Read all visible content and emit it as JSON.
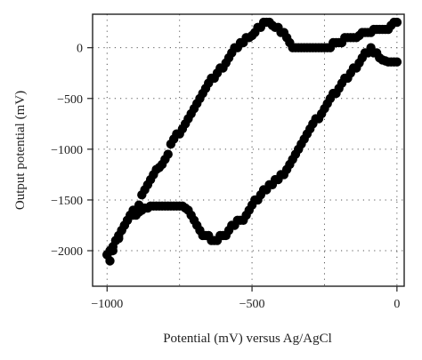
{
  "chart_data": {
    "type": "scatter",
    "xlabel": "Potential (mV) versus Ag/AgCl",
    "ylabel": "Output potential (mV)",
    "xlim": [
      -1050,
      25
    ],
    "ylim": [
      -2350,
      330
    ],
    "x_ticks": [
      -1000,
      -500,
      0
    ],
    "y_ticks": [
      -2000,
      -1500,
      -1000,
      -500,
      0
    ],
    "x_tick_labels": [
      "−1000",
      "−500",
      "0"
    ],
    "y_tick_labels": [
      "−2000",
      "−1500",
      "−1000",
      "−500",
      "0"
    ],
    "x_grid": [
      -1000,
      -750,
      -500,
      -250,
      0
    ],
    "y_grid": [
      -2000,
      -1500,
      -1000,
      -500,
      0
    ],
    "grid": "dotted",
    "marker_color": "#000000",
    "series": [
      {
        "x": [
          -1000,
          -990,
          -980,
          -970,
          -960,
          -950,
          -940,
          -930,
          -920,
          -910,
          -900,
          -890,
          -880,
          -870,
          -860,
          -850,
          -840,
          -830,
          -820,
          -810,
          -800,
          -790,
          -780,
          -770,
          -760,
          -750,
          -740,
          -730,
          -720,
          -710,
          -700,
          -690,
          -680,
          -670,
          -660,
          -650,
          -640,
          -630,
          -620,
          -610,
          -600,
          -590,
          -580,
          -570,
          -560,
          -550,
          -540,
          -530,
          -520,
          -510,
          -500,
          -490,
          -480,
          -470,
          -460,
          -450,
          -440,
          -430,
          -420,
          -410,
          -400,
          -390,
          -380,
          -370,
          -360,
          -350,
          -340,
          -330,
          -320,
          -310,
          -300,
          -290,
          -280,
          -270,
          -260,
          -250,
          -240,
          -230,
          -220,
          -210,
          -200,
          -190,
          -180,
          -170,
          -160,
          -150,
          -140,
          -130,
          -120,
          -110,
          -100,
          -90,
          -80,
          -70,
          -60,
          -50,
          -40,
          -30,
          -20,
          -10,
          0
        ],
        "y": [
          -2040,
          -2100,
          -2000,
          -1900,
          -1880,
          -1800,
          -1750,
          -1700,
          -1650,
          -1600,
          -1600,
          -1550,
          -1450,
          -1400,
          -1350,
          -1300,
          -1250,
          -1200,
          -1180,
          -1150,
          -1100,
          -1050,
          -950,
          -900,
          -850,
          -850,
          -800,
          -750,
          -700,
          -650,
          -600,
          -550,
          -500,
          -450,
          -400,
          -350,
          -300,
          -300,
          -250,
          -200,
          -200,
          -150,
          -100,
          -50,
          0,
          0,
          50,
          50,
          100,
          100,
          120,
          150,
          200,
          200,
          250,
          250,
          250,
          220,
          200,
          200,
          150,
          150,
          100,
          50,
          0,
          0,
          0,
          0,
          0,
          0,
          0,
          0,
          0,
          0,
          0,
          0,
          0,
          0,
          50,
          50,
          50,
          50,
          100,
          100,
          100,
          100,
          100,
          120,
          150,
          150,
          150,
          150,
          180,
          180,
          180,
          180,
          180,
          180,
          220,
          250,
          250
        ]
      },
      {
        "x": [
          -1000,
          -990,
          -980,
          -970,
          -960,
          -950,
          -940,
          -930,
          -920,
          -910,
          -900,
          -890,
          -880,
          -870,
          -860,
          -850,
          -840,
          -830,
          -820,
          -810,
          -800,
          -790,
          -780,
          -770,
          -760,
          -750,
          -740,
          -730,
          -720,
          -710,
          -700,
          -690,
          -680,
          -670,
          -660,
          -650,
          -640,
          -630,
          -620,
          -610,
          -600,
          -590,
          -580,
          -570,
          -560,
          -550,
          -540,
          -530,
          -520,
          -510,
          -500,
          -490,
          -480,
          -470,
          -460,
          -450,
          -440,
          -430,
          -420,
          -410,
          -400,
          -390,
          -380,
          -370,
          -360,
          -350,
          -340,
          -330,
          -320,
          -310,
          -300,
          -290,
          -280,
          -270,
          -260,
          -250,
          -240,
          -230,
          -220,
          -210,
          -200,
          -190,
          -180,
          -170,
          -160,
          -150,
          -140,
          -130,
          -120,
          -110,
          -100,
          -90,
          -80,
          -70,
          -60,
          -50,
          -40,
          -30,
          -20,
          -10,
          0
        ],
        "y": [
          -2040,
          -2000,
          -1960,
          -1900,
          -1850,
          -1800,
          -1750,
          -1700,
          -1650,
          -1650,
          -1650,
          -1620,
          -1600,
          -1580,
          -1580,
          -1560,
          -1560,
          -1560,
          -1560,
          -1560,
          -1560,
          -1560,
          -1560,
          -1560,
          -1560,
          -1560,
          -1560,
          -1580,
          -1600,
          -1650,
          -1700,
          -1750,
          -1800,
          -1850,
          -1850,
          -1850,
          -1900,
          -1900,
          -1900,
          -1850,
          -1850,
          -1850,
          -1800,
          -1750,
          -1750,
          -1700,
          -1700,
          -1700,
          -1650,
          -1600,
          -1550,
          -1500,
          -1500,
          -1450,
          -1400,
          -1400,
          -1350,
          -1350,
          -1300,
          -1300,
          -1250,
          -1250,
          -1200,
          -1150,
          -1100,
          -1050,
          -1000,
          -950,
          -900,
          -850,
          -800,
          -750,
          -700,
          -700,
          -650,
          -600,
          -550,
          -500,
          -450,
          -450,
          -400,
          -350,
          -300,
          -300,
          -250,
          -200,
          -200,
          -150,
          -100,
          -50,
          -50,
          0,
          -50,
          -50,
          -100,
          -120,
          -130,
          -140,
          -140,
          -140,
          -140
        ]
      }
    ]
  }
}
